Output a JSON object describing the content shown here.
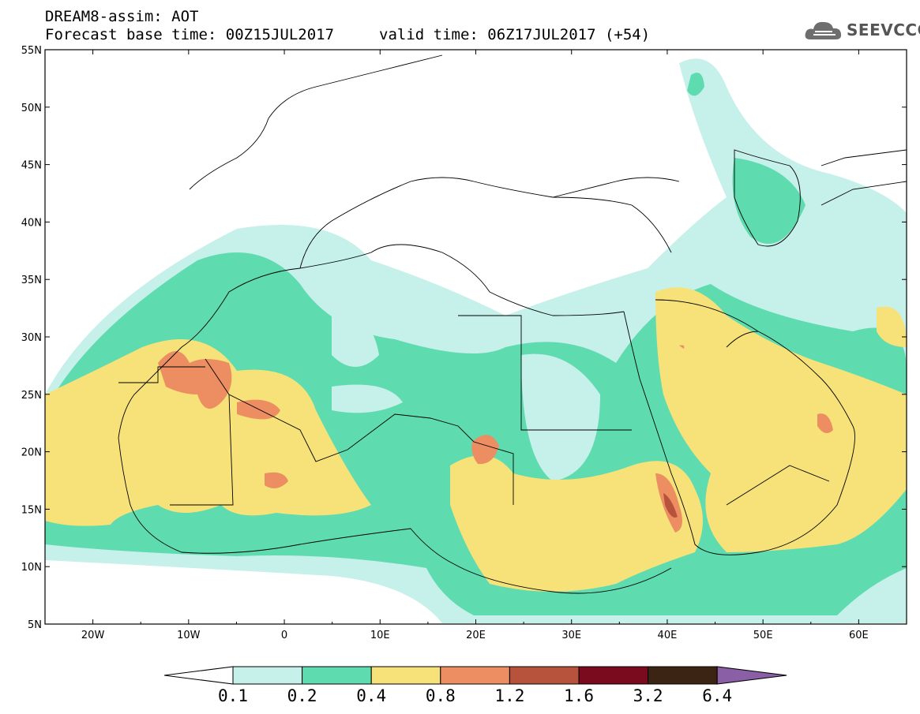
{
  "header": {
    "line1": "DREAM8-assim: AOT",
    "line2": "Forecast base time: 00Z15JUL2017",
    "line3": "valid time: 06Z17JUL2017 (+54)",
    "logo": "SEEVCCC"
  },
  "map": {
    "lon_labels": [
      "20W",
      "10W",
      "0",
      "10E",
      "20E",
      "30E",
      "40E",
      "50E",
      "60E"
    ],
    "lat_labels": [
      "55N",
      "50N",
      "45N",
      "40N",
      "35N",
      "30N",
      "25N",
      "20N",
      "15N",
      "10N",
      "5N"
    ],
    "lon_range": [
      -25,
      65
    ],
    "lat_range": [
      5,
      55
    ]
  },
  "colorbar": {
    "colors": [
      "#ffffff",
      "#c6f0ea",
      "#5fdbb0",
      "#f7e27a",
      "#ec8e62",
      "#b7533d",
      "#7a0a1e",
      "#3b2413",
      "#8a5fa6"
    ],
    "labels": [
      "0.1",
      "0.2",
      "0.4",
      "0.8",
      "1.2",
      "1.6",
      "3.2",
      "6.4"
    ]
  }
}
